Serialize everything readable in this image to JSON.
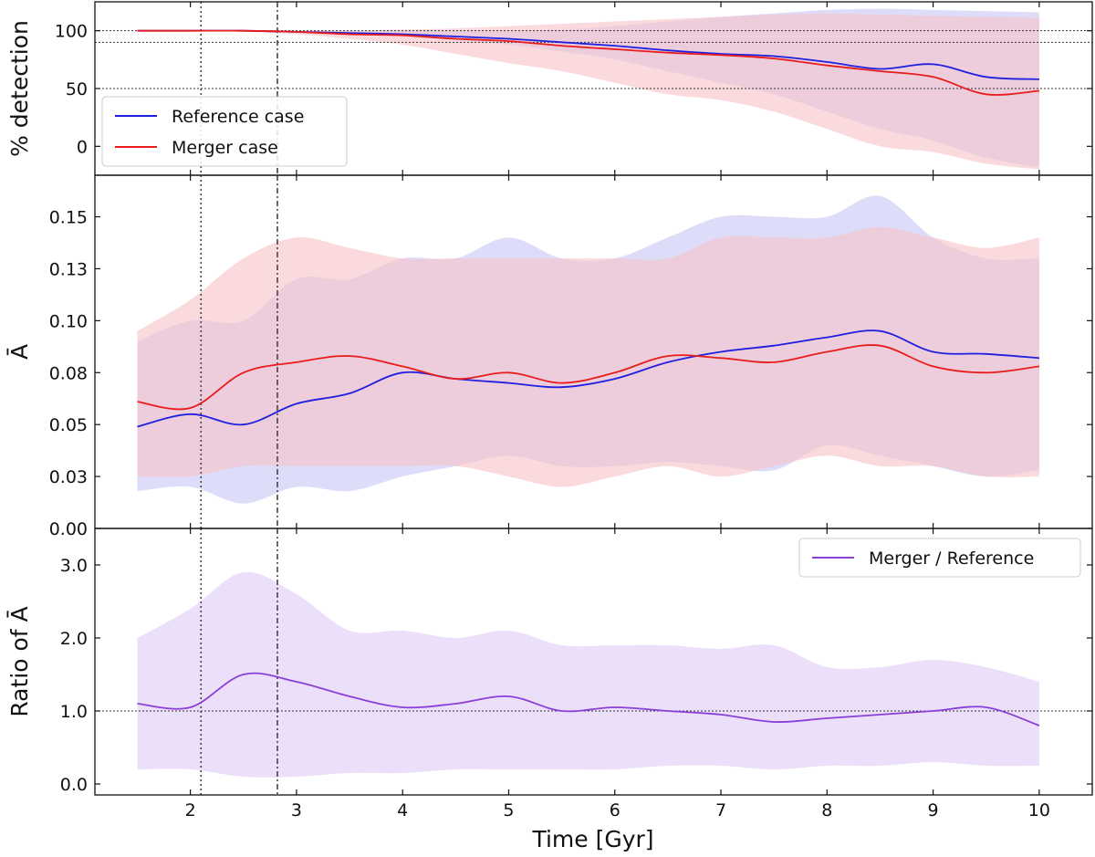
{
  "figure": {
    "xlabel": "Time [Gyr]",
    "x_ticks": [
      2,
      3,
      4,
      5,
      6,
      7,
      8,
      9,
      10
    ],
    "xlim": [
      1.1,
      10.5
    ],
    "vlines": [
      2.1,
      2.82
    ]
  },
  "colors": {
    "reference": "#1f1fe0",
    "merger": "#e81c1c",
    "ratio": "#8a3fd9",
    "reference_band": "#c8c8f5",
    "merger_band": "#f7c3c8",
    "overlap_band": "#d9b8d9",
    "ratio_band": "#eadcf8"
  },
  "chart_data": [
    {
      "type": "line",
      "panel": "detection",
      "ylabel": "% detection",
      "ylim": [
        -25,
        125
      ],
      "yticks": [
        0,
        50,
        100
      ],
      "hlines": [
        100,
        90,
        50
      ],
      "legend_position": "lower-left",
      "x": [
        1.5,
        2.0,
        2.5,
        3.0,
        3.5,
        4.0,
        4.5,
        5.0,
        5.5,
        6.0,
        6.5,
        7.0,
        7.5,
        8.0,
        8.5,
        9.0,
        9.5,
        10.0
      ],
      "series": [
        {
          "name": "Reference case",
          "values": [
            100,
            100,
            100,
            99,
            98,
            97,
            95,
            93,
            90,
            87,
            83,
            80,
            78,
            73,
            67,
            71,
            60,
            58
          ],
          "band_lower": [
            100,
            100,
            100,
            99,
            97,
            95,
            92,
            88,
            82,
            75,
            65,
            55,
            45,
            30,
            15,
            5,
            -10,
            -18
          ],
          "band_upper": [
            100,
            100,
            100,
            100,
            100,
            100,
            100,
            100,
            101,
            104,
            108,
            112,
            115,
            118,
            119,
            118,
            117,
            116
          ]
        },
        {
          "name": "Merger case",
          "values": [
            100,
            100,
            100,
            99,
            97,
            96,
            93,
            91,
            87,
            84,
            81,
            79,
            76,
            70,
            65,
            60,
            45,
            48
          ],
          "band_lower": [
            100,
            100,
            99,
            97,
            93,
            88,
            80,
            72,
            65,
            55,
            45,
            40,
            30,
            15,
            0,
            -5,
            -15,
            -20
          ],
          "band_upper": [
            100,
            100,
            100,
            100,
            100,
            101,
            102,
            104,
            106,
            108,
            110,
            112,
            114,
            115,
            114,
            113,
            112,
            111
          ]
        }
      ]
    },
    {
      "type": "line",
      "panel": "amplitude",
      "ylabel": "Ā",
      "ylim": [
        0.0,
        0.17
      ],
      "yticks": [
        0.0,
        0.025,
        0.05,
        0.075,
        0.1,
        0.125,
        0.15
      ],
      "ytick_labels": [
        "0.00",
        "0.03",
        "0.05",
        "0.08",
        "0.10",
        "0.13",
        "0.15"
      ],
      "x": [
        1.5,
        2.0,
        2.5,
        3.0,
        3.5,
        4.0,
        4.5,
        5.0,
        5.5,
        6.0,
        6.5,
        7.0,
        7.5,
        8.0,
        8.5,
        9.0,
        9.5,
        10.0
      ],
      "series": [
        {
          "name": "Reference case",
          "values": [
            0.049,
            0.055,
            0.05,
            0.06,
            0.065,
            0.075,
            0.072,
            0.07,
            0.068,
            0.072,
            0.08,
            0.085,
            0.088,
            0.092,
            0.095,
            0.085,
            0.084,
            0.082
          ],
          "band_lower": [
            0.018,
            0.02,
            0.012,
            0.02,
            0.018,
            0.025,
            0.03,
            0.035,
            0.03,
            0.03,
            0.032,
            0.03,
            0.028,
            0.04,
            0.035,
            0.03,
            0.025,
            0.028
          ],
          "band_upper": [
            0.09,
            0.1,
            0.1,
            0.12,
            0.12,
            0.13,
            0.13,
            0.14,
            0.13,
            0.13,
            0.14,
            0.15,
            0.15,
            0.15,
            0.16,
            0.14,
            0.13,
            0.13
          ]
        },
        {
          "name": "Merger case",
          "values": [
            0.061,
            0.058,
            0.075,
            0.08,
            0.083,
            0.078,
            0.072,
            0.075,
            0.07,
            0.075,
            0.083,
            0.082,
            0.08,
            0.085,
            0.088,
            0.078,
            0.075,
            0.078
          ],
          "band_lower": [
            0.025,
            0.025,
            0.03,
            0.03,
            0.03,
            0.03,
            0.03,
            0.025,
            0.02,
            0.025,
            0.03,
            0.025,
            0.03,
            0.035,
            0.03,
            0.03,
            0.025,
            0.025
          ],
          "band_upper": [
            0.095,
            0.11,
            0.13,
            0.14,
            0.135,
            0.13,
            0.13,
            0.13,
            0.13,
            0.13,
            0.13,
            0.14,
            0.14,
            0.14,
            0.145,
            0.14,
            0.135,
            0.14
          ]
        }
      ]
    },
    {
      "type": "line",
      "panel": "ratio",
      "ylabel": "Ratio of Ā",
      "ylim": [
        -0.15,
        3.5
      ],
      "yticks": [
        0.0,
        1.0,
        2.0,
        3.0
      ],
      "hlines": [
        1.0
      ],
      "legend_position": "upper-right",
      "x": [
        1.5,
        2.0,
        2.5,
        3.0,
        3.5,
        4.0,
        4.5,
        5.0,
        5.5,
        6.0,
        6.5,
        7.0,
        7.5,
        8.0,
        8.5,
        9.0,
        9.5,
        10.0
      ],
      "series": [
        {
          "name": "Merger / Reference",
          "values": [
            1.1,
            1.05,
            1.5,
            1.4,
            1.2,
            1.05,
            1.1,
            1.2,
            1.0,
            1.05,
            1.0,
            0.95,
            0.85,
            0.9,
            0.95,
            1.0,
            1.05,
            0.8
          ],
          "band_lower": [
            0.2,
            0.2,
            0.1,
            0.1,
            0.15,
            0.15,
            0.2,
            0.2,
            0.2,
            0.2,
            0.25,
            0.25,
            0.2,
            0.25,
            0.25,
            0.3,
            0.25,
            0.25
          ],
          "band_upper": [
            2.0,
            2.4,
            2.9,
            2.6,
            2.1,
            2.1,
            2.0,
            2.1,
            1.9,
            1.9,
            1.9,
            1.85,
            1.9,
            1.6,
            1.6,
            1.7,
            1.6,
            1.4
          ]
        }
      ]
    }
  ]
}
